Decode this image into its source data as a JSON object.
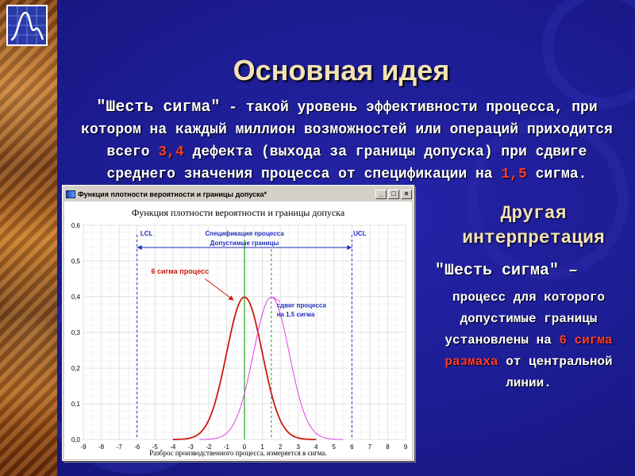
{
  "slide": {
    "title": "Основная идея",
    "para_quote": "\"Шесть сигма\"",
    "para_1": " - такой уровень эффективности процесса, при котором на каждый миллион возможностей или операций приходится всего ",
    "para_red1": "3,4",
    "para_2": " дефекта (выхода за границы допуска) при сдвиге среднего значения процесса от спецификации на ",
    "para_red2": "1,5",
    "para_3": " сигма.",
    "right_heading": "Другая интерпретация",
    "right_quote": "\"Шесть сигма\"",
    "right_dash": " –",
    "right_body_1": "процесс для которого допустимые границы установлены на ",
    "right_red": "6 сигма размаха",
    "right_body_2": " от центральной линии."
  },
  "window": {
    "title": "Функция плотности вероятности и границы допуска*",
    "btn_min": "_",
    "btn_max": "□",
    "btn_close": "×"
  },
  "chart_data": {
    "type": "line",
    "title": "Функция плотности вероятности и границы допуска",
    "xlabel": "Разброс производственного процесса, измеряется в сигма.",
    "ylabel": "",
    "xlim": [
      -9,
      9
    ],
    "ylim": [
      0,
      0.6
    ],
    "x_ticks": [
      "-9",
      "-8",
      "-7",
      "-6",
      "-5",
      "-4",
      "-3",
      "-2",
      "-1",
      "0",
      "1",
      "2",
      "3",
      "4",
      "5",
      "6",
      "7",
      "8",
      "9"
    ],
    "y_ticks": [
      "0,0",
      "0,1",
      "0,2",
      "0,3",
      "0,4",
      "0,5",
      "0,6"
    ],
    "grid": true,
    "series": [
      {
        "name": "6 сигма процесс",
        "mean": 0,
        "sd": 1,
        "color": "#cc1a10"
      },
      {
        "name": "сдвиг процесса на 1.5 сигма",
        "mean": 1.5,
        "sd": 1,
        "color": "#e040e8"
      }
    ],
    "lines": {
      "lcl": {
        "x": -6,
        "label": "LCL",
        "color": "#2030c0"
      },
      "ucl": {
        "x": 6,
        "label": "UCL",
        "color": "#2030c0"
      },
      "spec": {
        "x": 0,
        "label": "Спецификация процесса",
        "color": "#20a020"
      },
      "shift": {
        "x": 1.5,
        "color": "#20a020"
      }
    },
    "tolerance_label": "Допустимые границы",
    "annotations": {
      "six_sigma": "6 сигма процесс",
      "shift_1": "сдвиг процесса",
      "shift_2": "на 1.5 сигма"
    }
  }
}
